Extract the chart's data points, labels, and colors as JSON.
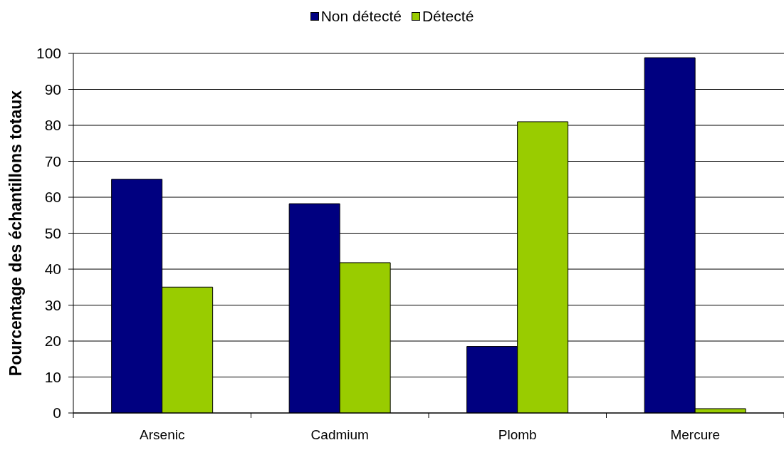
{
  "chart_data": {
    "type": "bar",
    "categories": [
      "Arsenic",
      "Cadmium",
      "Plomb",
      "Mercure"
    ],
    "series": [
      {
        "name": "Non détecté",
        "color": "#000080",
        "values": [
          65,
          58.2,
          18.5,
          98.8
        ]
      },
      {
        "name": "Détecté",
        "color": "#99cc00",
        "values": [
          35,
          41.8,
          81,
          1.2
        ]
      }
    ],
    "ylabel": "Pourcentage des échantillons totaux",
    "ylim": [
      0,
      100
    ],
    "yticks": [
      0,
      10,
      20,
      30,
      40,
      50,
      60,
      70,
      80,
      90,
      100
    ],
    "grid": "y",
    "legend": "top"
  }
}
